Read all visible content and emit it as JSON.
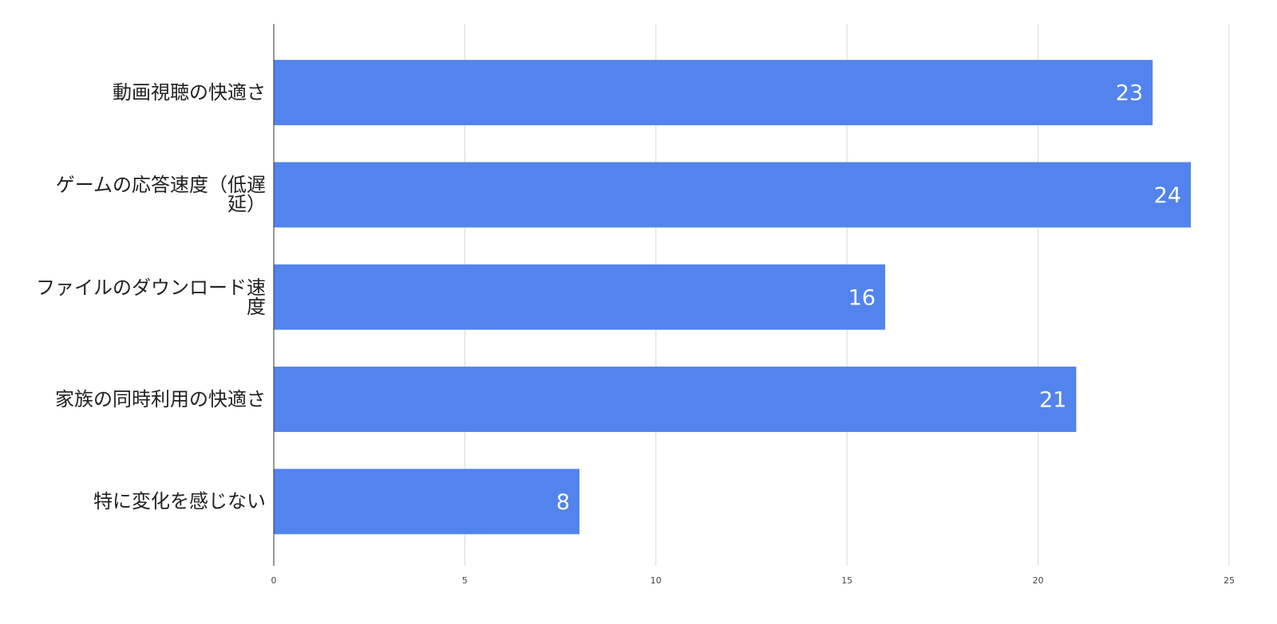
{
  "chart_data": {
    "type": "bar",
    "orientation": "horizontal",
    "categories": [
      "動画視聴の快適さ",
      "ゲームの応答速度（低遅延）",
      "ファイルのダウンロード速度",
      "家族の同時利用の快適さ",
      "特に変化を感じない"
    ],
    "values": [
      23,
      24,
      16,
      21,
      8
    ],
    "color": "#5383ec",
    "xlim": [
      0,
      25
    ],
    "xticks": [
      0,
      5,
      10,
      15,
      20,
      25
    ],
    "grid": true
  }
}
